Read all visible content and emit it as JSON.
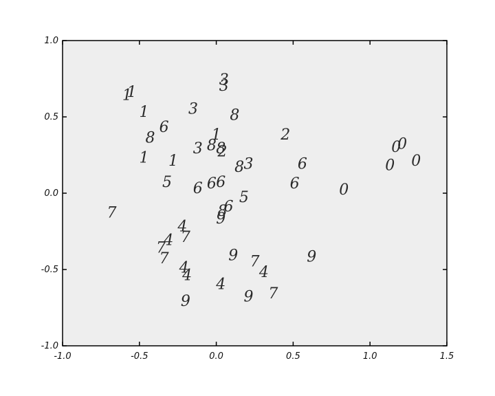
{
  "chart_data": {
    "type": "scatter",
    "title": "",
    "xlabel": "",
    "ylabel": "",
    "xlim": [
      -1.0,
      1.5
    ],
    "ylim": [
      -1.0,
      1.0
    ],
    "grid": false,
    "x_ticks": [
      "-1.0",
      "-0.5",
      "0.0",
      "0.5",
      "1.0",
      "1.5"
    ],
    "x_tick_values": [
      -1.0,
      -0.5,
      0.0,
      0.5,
      1.0,
      1.5
    ],
    "y_ticks": [
      "1.0",
      "0.5",
      "0.0",
      "-0.5",
      "-1.0"
    ],
    "y_tick_values": [
      1.0,
      0.5,
      0.0,
      -0.5,
      -1.0
    ],
    "colors": {
      "plot_bg": "#eeeeee",
      "axis": "#000000",
      "text": "#2a2a2a"
    },
    "points": [
      {
        "x": 0.05,
        "y": 0.74,
        "label": "3"
      },
      {
        "x": 0.05,
        "y": 0.7,
        "label": "3"
      },
      {
        "x": -0.58,
        "y": 0.64,
        "label": "1"
      },
      {
        "x": -0.55,
        "y": 0.66,
        "label": "1"
      },
      {
        "x": -0.47,
        "y": 0.53,
        "label": "1"
      },
      {
        "x": -0.34,
        "y": 0.43,
        "label": "6"
      },
      {
        "x": -0.15,
        "y": 0.55,
        "label": "3"
      },
      {
        "x": 0.12,
        "y": 0.51,
        "label": "8"
      },
      {
        "x": -0.43,
        "y": 0.36,
        "label": "8"
      },
      {
        "x": -0.47,
        "y": 0.23,
        "label": "1"
      },
      {
        "x": -0.28,
        "y": 0.21,
        "label": "1"
      },
      {
        "x": -0.12,
        "y": 0.29,
        "label": "3"
      },
      {
        "x": -0.03,
        "y": 0.31,
        "label": "8"
      },
      {
        "x": 0.0,
        "y": 0.38,
        "label": "1"
      },
      {
        "x": 0.03,
        "y": 0.29,
        "label": "8"
      },
      {
        "x": 0.04,
        "y": 0.27,
        "label": "2"
      },
      {
        "x": 0.45,
        "y": 0.38,
        "label": "2"
      },
      {
        "x": 0.15,
        "y": 0.17,
        "label": "8"
      },
      {
        "x": 0.21,
        "y": 0.19,
        "label": "3"
      },
      {
        "x": 0.56,
        "y": 0.19,
        "label": "6"
      },
      {
        "x": -0.32,
        "y": 0.07,
        "label": "5"
      },
      {
        "x": -0.12,
        "y": 0.03,
        "label": "6"
      },
      {
        "x": -0.03,
        "y": 0.06,
        "label": "6"
      },
      {
        "x": 0.03,
        "y": 0.07,
        "label": "6"
      },
      {
        "x": 0.51,
        "y": 0.06,
        "label": "6"
      },
      {
        "x": 0.83,
        "y": 0.02,
        "label": "0"
      },
      {
        "x": 1.17,
        "y": 0.3,
        "label": "0"
      },
      {
        "x": 1.21,
        "y": 0.32,
        "label": "0"
      },
      {
        "x": 1.13,
        "y": 0.18,
        "label": "0"
      },
      {
        "x": 1.3,
        "y": 0.21,
        "label": "0"
      },
      {
        "x": -0.68,
        "y": -0.13,
        "label": "7"
      },
      {
        "x": 0.18,
        "y": -0.03,
        "label": "5"
      },
      {
        "x": 0.08,
        "y": -0.09,
        "label": "6"
      },
      {
        "x": 0.04,
        "y": -0.12,
        "label": "8"
      },
      {
        "x": 0.03,
        "y": -0.17,
        "label": "9"
      },
      {
        "x": -0.22,
        "y": -0.22,
        "label": "4"
      },
      {
        "x": -0.2,
        "y": -0.29,
        "label": "7"
      },
      {
        "x": -0.31,
        "y": -0.31,
        "label": "4"
      },
      {
        "x": -0.36,
        "y": -0.36,
        "label": "7"
      },
      {
        "x": -0.34,
        "y": -0.43,
        "label": "7"
      },
      {
        "x": 0.11,
        "y": -0.41,
        "label": "9"
      },
      {
        "x": 0.25,
        "y": -0.45,
        "label": "7"
      },
      {
        "x": 0.31,
        "y": -0.52,
        "label": "4"
      },
      {
        "x": 0.62,
        "y": -0.42,
        "label": "9"
      },
      {
        "x": -0.21,
        "y": -0.49,
        "label": "4"
      },
      {
        "x": -0.19,
        "y": -0.54,
        "label": "4"
      },
      {
        "x": 0.03,
        "y": -0.6,
        "label": "4"
      },
      {
        "x": 0.37,
        "y": -0.66,
        "label": "7"
      },
      {
        "x": 0.21,
        "y": -0.68,
        "label": "9"
      },
      {
        "x": -0.2,
        "y": -0.71,
        "label": "9"
      }
    ]
  }
}
